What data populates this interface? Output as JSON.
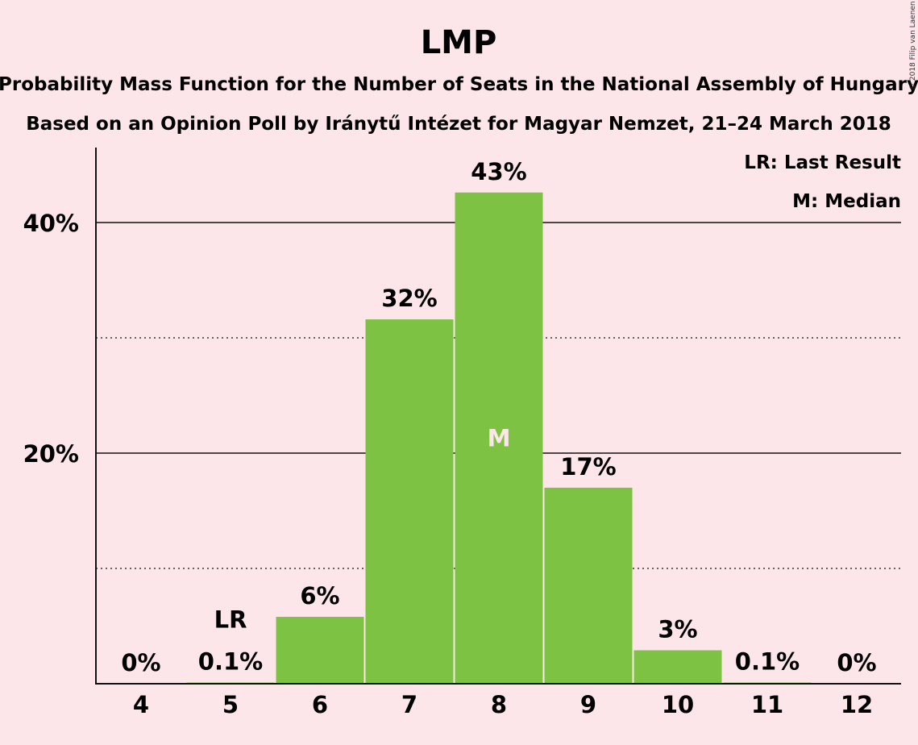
{
  "chart_data": {
    "type": "bar",
    "title": "LMP",
    "subtitle_lines": [
      "Probability Mass Function for the Number of Seats in the National Assembly of Hungary",
      "Based on an Opinion Poll by Iránytű Intézet for Magyar Nemzet, 21–24 March 2018"
    ],
    "categories": [
      "4",
      "5",
      "6",
      "7",
      "8",
      "9",
      "10",
      "11",
      "12"
    ],
    "values": [
      0,
      0.1,
      5.8,
      31.6,
      42.6,
      17.0,
      2.9,
      0.1,
      0
    ],
    "data_labels": [
      "0%",
      "0.1%",
      "6%",
      "32%",
      "43%",
      "17%",
      "3%",
      "0.1%",
      "0%"
    ],
    "ylim": [
      0,
      46.5
    ],
    "yticks": [
      20,
      40
    ],
    "ytick_labels": [
      "20%",
      "40%"
    ],
    "minor_gridlines": [
      10,
      30
    ],
    "last_result_category": "5",
    "last_result_marker": "LR",
    "median_category": "8",
    "median_marker": "M",
    "legend": [
      "LR: Last Result",
      "M: Median"
    ],
    "legend_position": "top-right",
    "bar_color": "#7dc243",
    "copyright": "© 2018 Filip van Laenen"
  }
}
